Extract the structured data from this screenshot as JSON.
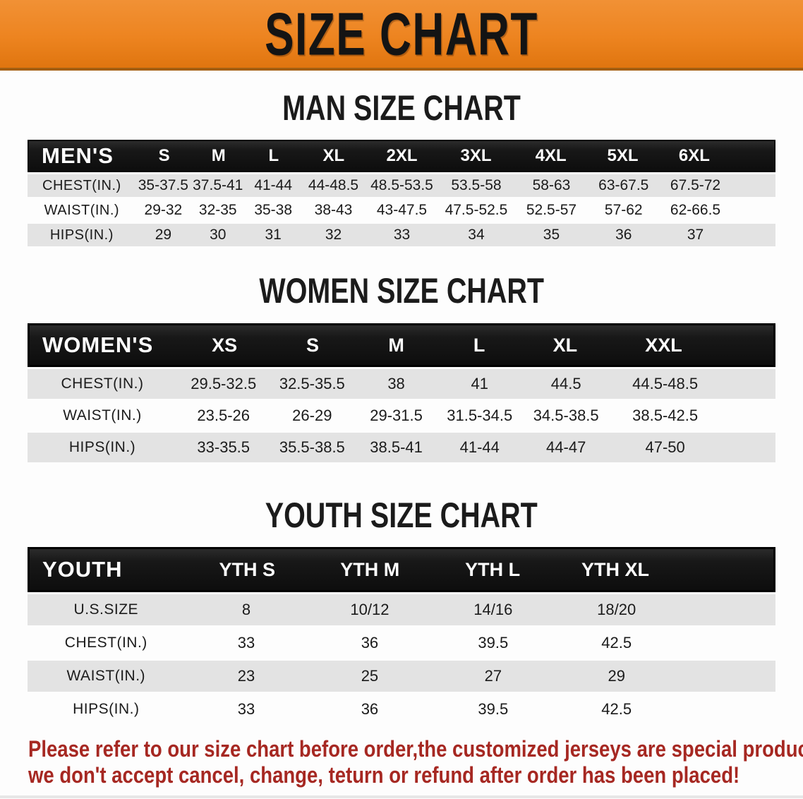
{
  "banner": {
    "title": "SIZE CHART"
  },
  "sections": [
    {
      "heading": "MAN SIZE CHART",
      "table": {
        "header_label": "MEN'S",
        "columns": [
          "S",
          "M",
          "L",
          "XL",
          "2XL",
          "3XL",
          "4XL",
          "5XL",
          "6XL"
        ],
        "rows": [
          {
            "label": "CHEST(IN.)",
            "values": [
              "35-37.5",
              "37.5-41",
              "41-44",
              "44-48.5",
              "48.5-53.5",
              "53.5-58",
              "58-63",
              "63-67.5",
              "67.5-72"
            ]
          },
          {
            "label": "WAIST(IN.)",
            "values": [
              "29-32",
              "32-35",
              "35-38",
              "38-43",
              "43-47.5",
              "47.5-52.5",
              "52.5-57",
              "57-62",
              "62-66.5"
            ]
          },
          {
            "label": "HIPS(IN.)",
            "values": [
              "29",
              "30",
              "31",
              "32",
              "33",
              "34",
              "35",
              "36",
              "37"
            ]
          }
        ]
      }
    },
    {
      "heading": "WOMEN SIZE CHART",
      "table": {
        "header_label": "WOMEN'S",
        "columns": [
          "XS",
          "S",
          "M",
          "L",
          "XL",
          "XXL"
        ],
        "rows": [
          {
            "label": "CHEST(IN.)",
            "values": [
              "29.5-32.5",
              "32.5-35.5",
              "38",
              "41",
              "44.5",
              "44.5-48.5"
            ]
          },
          {
            "label": "WAIST(IN.)",
            "values": [
              "23.5-26",
              "26-29",
              "29-31.5",
              "31.5-34.5",
              "34.5-38.5",
              "38.5-42.5"
            ]
          },
          {
            "label": "HIPS(IN.)",
            "values": [
              "33-35.5",
              "35.5-38.5",
              "38.5-41",
              "41-44",
              "44-47",
              "47-50"
            ]
          }
        ]
      }
    },
    {
      "heading": "YOUTH SIZE CHART",
      "table": {
        "header_label": "YOUTH",
        "columns": [
          "YTH S",
          "YTH M",
          "YTH L",
          "YTH XL"
        ],
        "rows": [
          {
            "label": "U.S.SIZE",
            "values": [
              "8",
              "10/12",
              "14/16",
              "18/20"
            ]
          },
          {
            "label": "CHEST(IN.)",
            "values": [
              "33",
              "36",
              "39.5",
              "42.5"
            ]
          },
          {
            "label": "WAIST(IN.)",
            "values": [
              "23",
              "25",
              "27",
              "29"
            ]
          },
          {
            "label": "HIPS(IN.)",
            "values": [
              "33",
              "36",
              "39.5",
              "42.5"
            ]
          }
        ]
      }
    }
  ],
  "disclaimer": {
    "line1": "Please refer to our size chart before order,the customized jerseys are special products,",
    "line2": "we don't accept cancel, change, teturn or refund after order has been placed!"
  },
  "colors": {
    "banner_orange": "#ED8420",
    "banner_edge": "#A35E10",
    "table_header_black": "#181818",
    "row_stripe_gray": "#E3E3E3",
    "disclaimer_red": "#A62822",
    "text_black": "#1B1B1B"
  }
}
